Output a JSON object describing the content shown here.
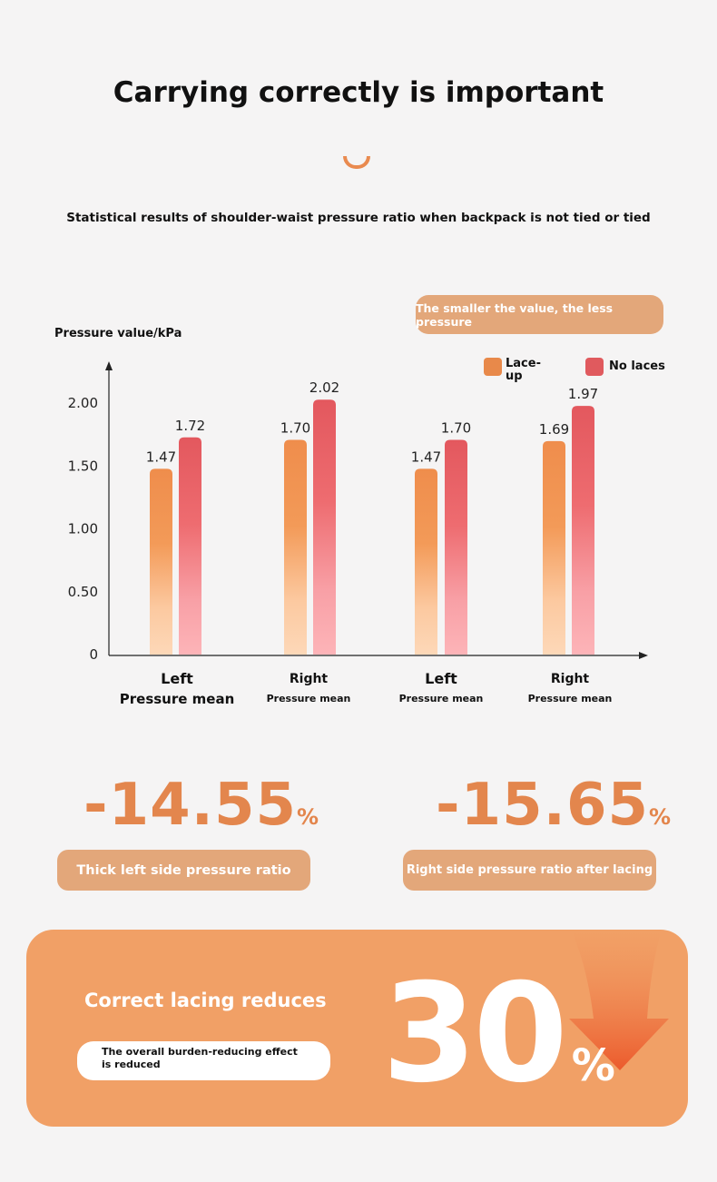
{
  "title": "Carrying correctly is important",
  "subtitle": "Statistical results of shoulder-waist pressure ratio when backpack is not tied or tied",
  "note": "The smaller the value, the less pressure",
  "chart_data": {
    "type": "bar",
    "ylabel": "Pressure value/kPa",
    "ylim": [
      0,
      2.0
    ],
    "yticks": [
      "0",
      "0.50",
      "1.00",
      "1.50",
      "2.00"
    ],
    "ytick_values": [
      0,
      0.5,
      1.0,
      1.5,
      2.0
    ],
    "categories": [
      {
        "top": "Left",
        "bottom": "Pressure mean"
      },
      {
        "top": "Right",
        "bottom": "Pressure mean"
      },
      {
        "top": "Left",
        "bottom": "Pressure mean"
      },
      {
        "top": "Right",
        "bottom": "Pressure mean"
      }
    ],
    "series": [
      {
        "name": "Lace-up",
        "color": "#e8894a",
        "values": [
          1.47,
          1.7,
          1.47,
          1.69
        ],
        "labels": [
          "1.47",
          "1.70",
          "1.47",
          "1.69"
        ]
      },
      {
        "name": "No laces",
        "color": "#e05a5e",
        "values": [
          1.72,
          2.02,
          1.7,
          1.97
        ],
        "labels": [
          "1.72",
          "2.02",
          "1.70",
          "1.97"
        ]
      }
    ],
    "legend": "top-right"
  },
  "stats": [
    {
      "value": "-14.55",
      "unit": "%",
      "label": "Thick left side pressure ratio"
    },
    {
      "value": "-15.65",
      "unit": "%",
      "label": "Right side pressure ratio after lacing"
    }
  ],
  "summary": {
    "heading": "Correct lacing reduces",
    "description": "The overall burden-reducing effect is reduced",
    "value": "30",
    "unit": "%"
  }
}
